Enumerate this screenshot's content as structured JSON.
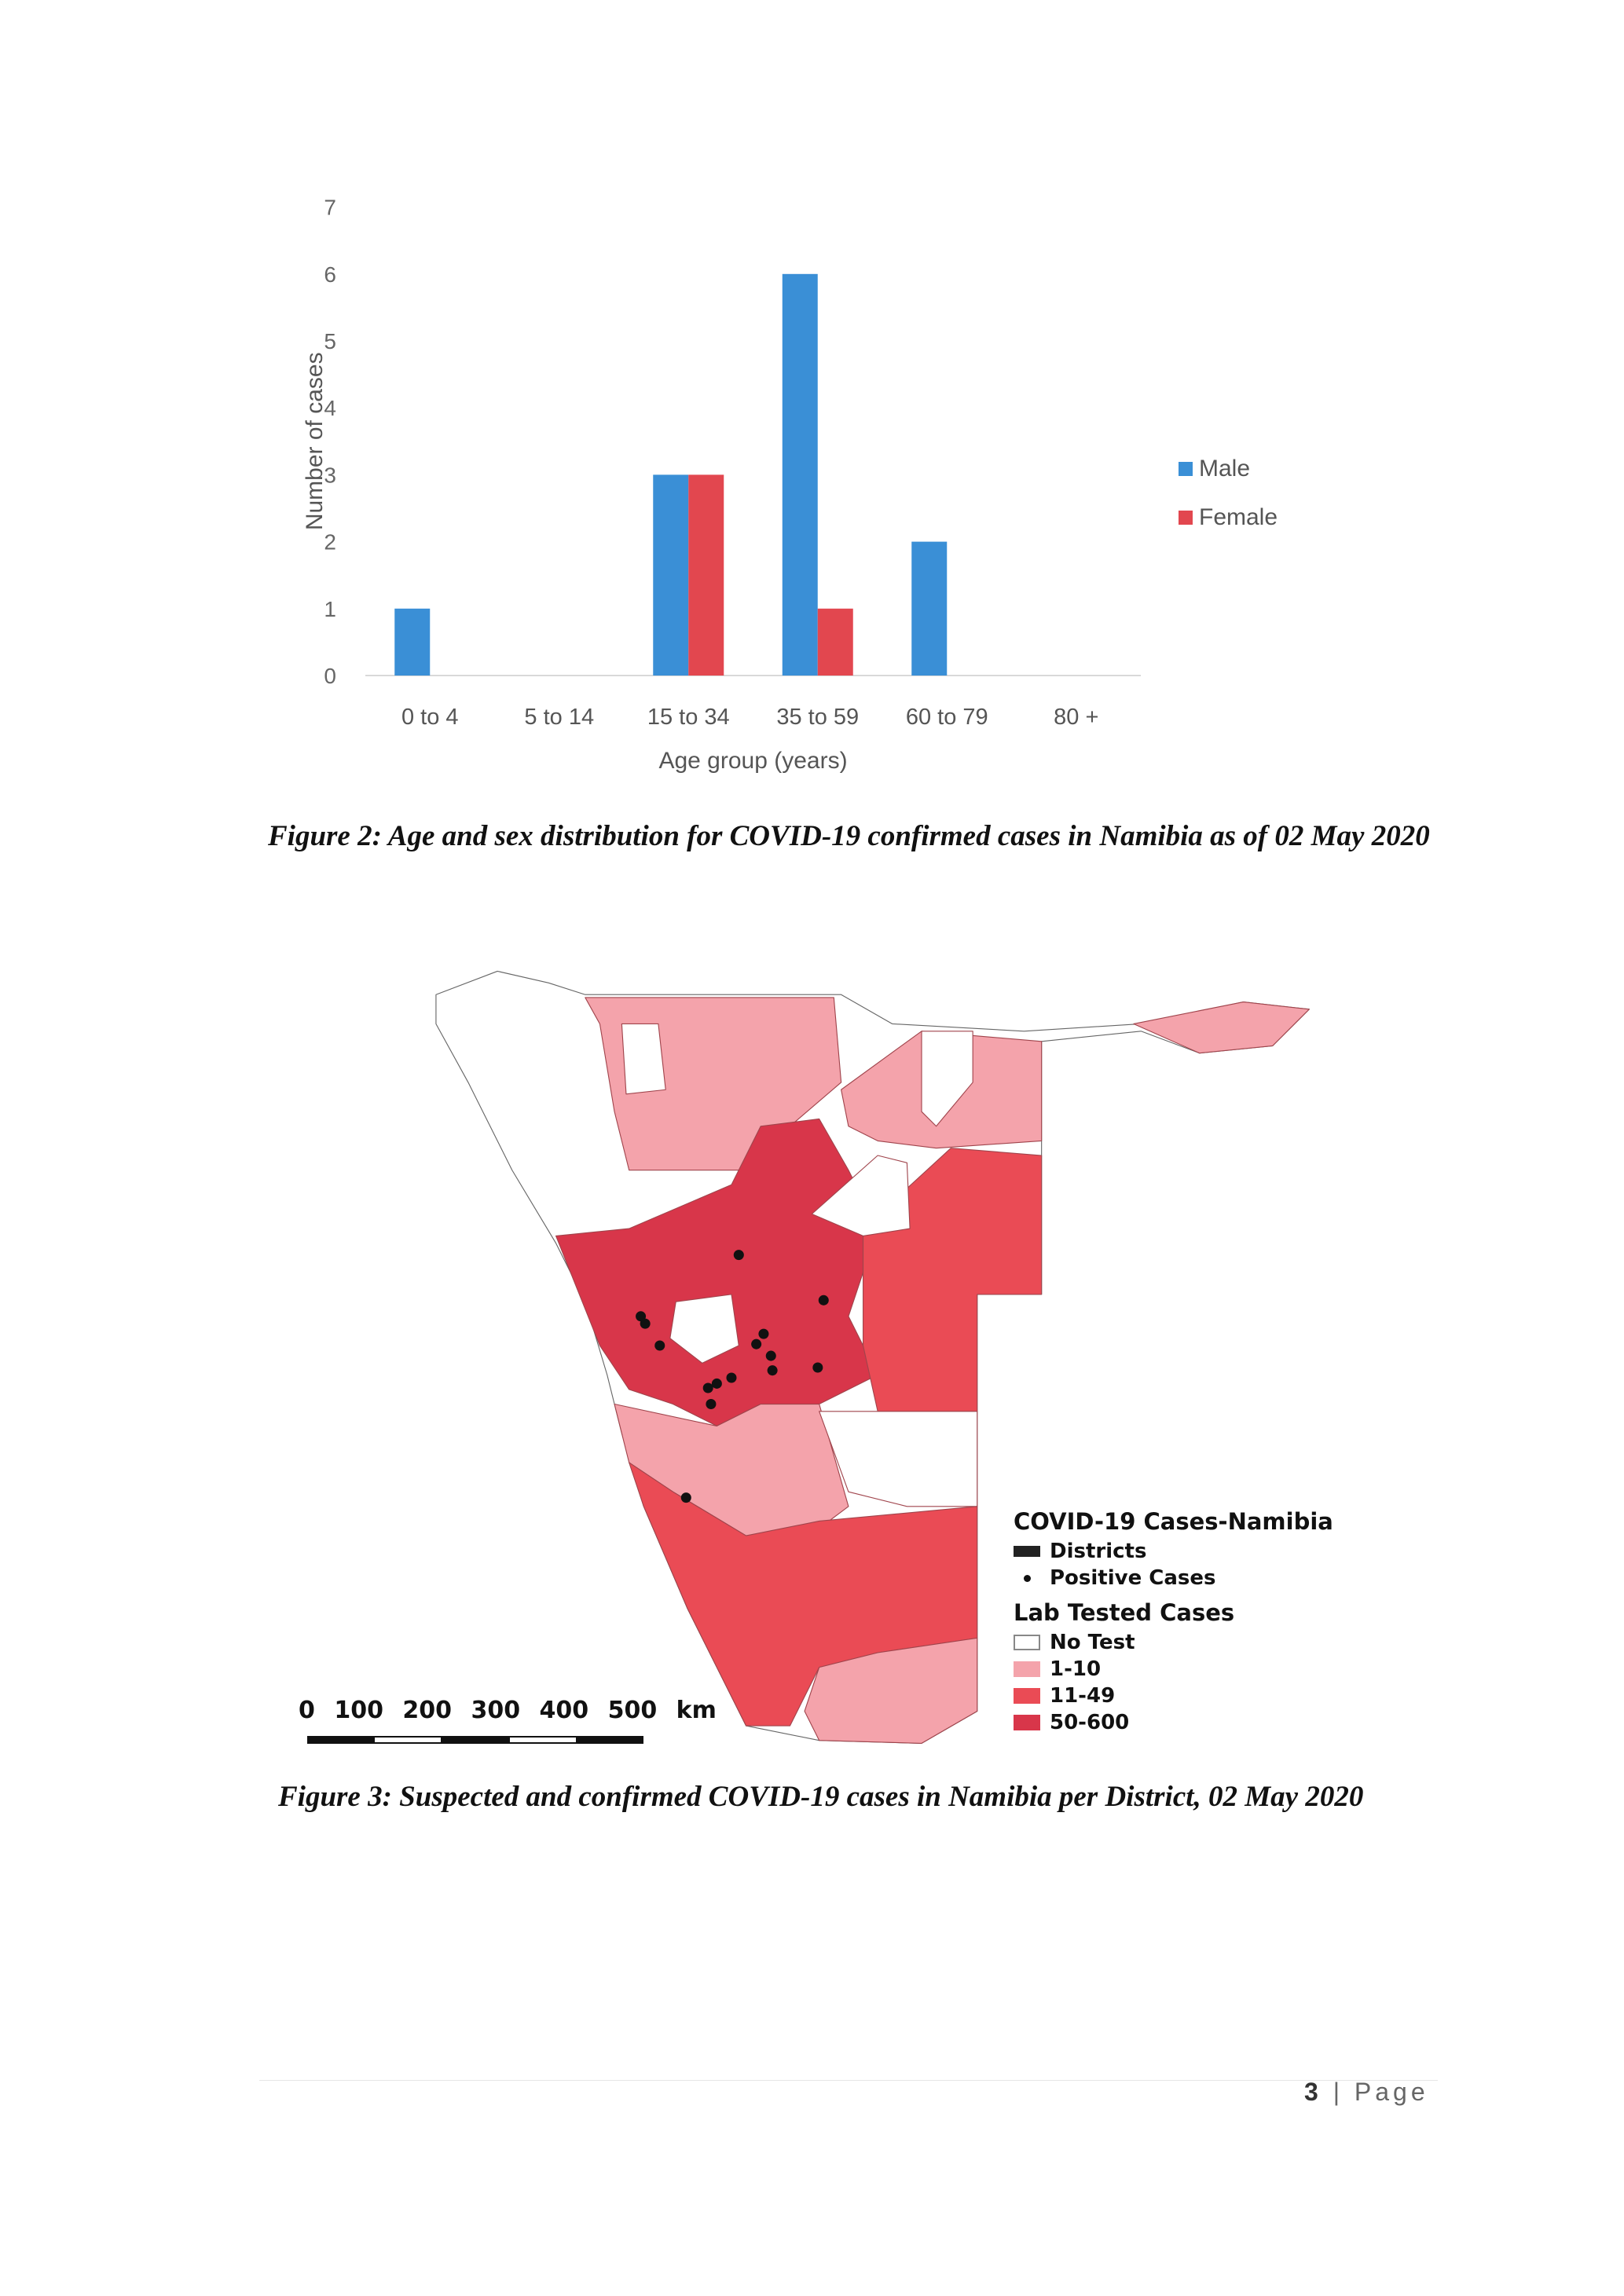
{
  "chart_data": {
    "type": "bar",
    "title": "",
    "xlabel": "Age group (years)",
    "ylabel": "Number of cases",
    "ylim": [
      0,
      7
    ],
    "yticks": [
      "0",
      "1",
      "2",
      "3",
      "4",
      "5",
      "6",
      "7"
    ],
    "categories": [
      "0 to 4",
      "5 to 14",
      "15 to 34",
      "35 to 59",
      "60 to 79",
      "80 +"
    ],
    "series": [
      {
        "name": "Male",
        "color": "#3a8fd6",
        "values": [
          1,
          0,
          3,
          6,
          2,
          0
        ]
      },
      {
        "name": "Female",
        "color": "#e2474f",
        "values": [
          0,
          0,
          3,
          1,
          0,
          0
        ]
      }
    ],
    "legend_position": "right",
    "grid": false
  },
  "figure2_caption": "Figure 2: Age and sex distribution for COVID-19 confirmed cases in Namibia as of 02 May 2020",
  "map": {
    "legend_title": "COVID-19 Cases-Namibia",
    "districts_label": "Districts",
    "positive_label": "Positive Cases",
    "lab_title": "Lab Tested Cases",
    "classes": [
      {
        "label": "No Test",
        "color": "#ffffff"
      },
      {
        "label": "1-10",
        "color": "#f4a3ab"
      },
      {
        "label": "11-49",
        "color": "#ea4b55"
      },
      {
        "label": "50-600",
        "color": "#d8364a"
      }
    ],
    "scale_label": "0 100 200 300 400 500 km"
  },
  "figure3_caption": "Figure 3: Suspected and confirmed COVID-19 cases in Namibia per District, 02 May 2020",
  "footer": {
    "page_number": "3",
    "page_word": "Page"
  }
}
